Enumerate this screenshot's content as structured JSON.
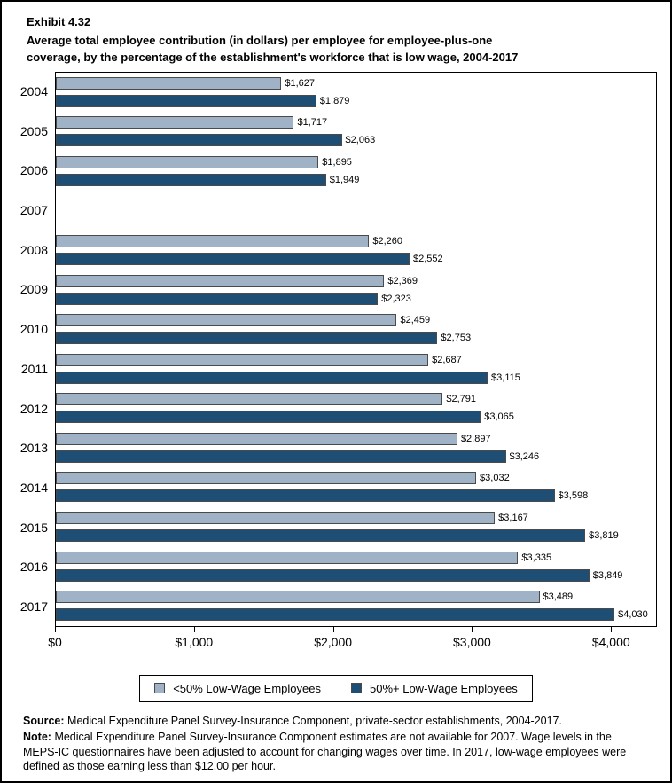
{
  "header": {
    "exhibit_number": "Exhibit 4.32",
    "title_line1": "Average total employee contribution (in dollars) per employee for employee-plus-one",
    "title_line2": "coverage, by the percentage of the establishment's workforce that is low wage, 2004-2017"
  },
  "chart_data": {
    "type": "bar",
    "orientation": "horizontal",
    "title": "Average total employee contribution (in dollars) per employee for employee-plus-one coverage, by the percentage of the establishment's workforce that is low wage, 2004-2017",
    "categories": [
      "2004",
      "2005",
      "2006",
      "2007",
      "2008",
      "2009",
      "2010",
      "2011",
      "2012",
      "2013",
      "2014",
      "2015",
      "2016",
      "2017"
    ],
    "series": [
      {
        "name": "<50% Low-Wage Employees",
        "color": "#9fb2c6",
        "values": [
          1627,
          1717,
          1895,
          null,
          2260,
          2369,
          2459,
          2687,
          2791,
          2897,
          3032,
          3167,
          3335,
          3489
        ]
      },
      {
        "name": "50%+ Low-Wage Employees",
        "color": "#1f4e74",
        "values": [
          1879,
          2063,
          1949,
          null,
          2552,
          2323,
          2753,
          3115,
          3065,
          3246,
          3598,
          3819,
          3849,
          4030
        ]
      }
    ],
    "value_prefix": "$",
    "xlim": [
      0,
      4330
    ],
    "xticks": [
      {
        "value": 0,
        "label": "$0"
      },
      {
        "value": 1000,
        "label": "$1,000"
      },
      {
        "value": 2000,
        "label": "$2,000"
      },
      {
        "value": 3000,
        "label": "$3,000"
      },
      {
        "value": 4000,
        "label": "$4,000"
      }
    ],
    "grid": false,
    "legend_position": "bottom",
    "bar_border_color": "#4a4a4a",
    "missing_data_years": [
      "2007"
    ]
  },
  "footer": {
    "source_label": "Source:",
    "source_text": "Medical Expenditure Panel Survey-Insurance Component, private-sector establishments, 2004-2017.",
    "note_label": "Note:",
    "note_text": "Medical Expenditure Panel Survey-Insurance Component estimates are not available for 2007. Wage levels in the MEPS-IC questionnaires have been adjusted to account for changing wages over time. In 2017, low-wage employees were defined as those earning less than $12.00 per hour."
  }
}
